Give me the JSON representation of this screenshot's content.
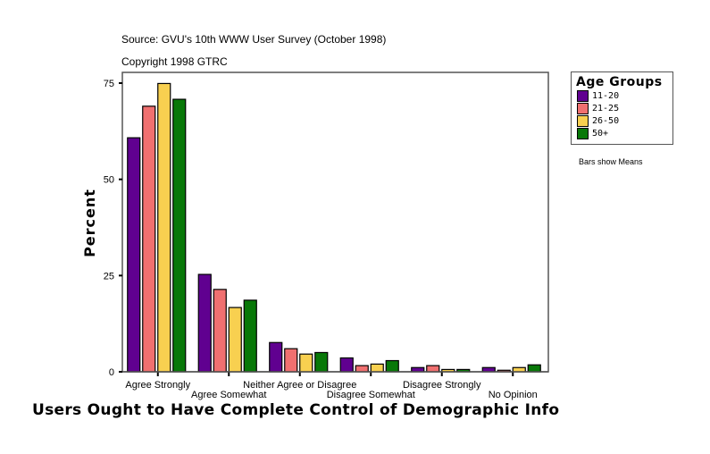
{
  "chart_data": {
    "type": "bar",
    "title": "Users Ought to Have Complete Control of Demographic Info",
    "source": "Source: GVU's 10th WWW User Survey (October 1998)",
    "copyright": "Copyright 1998 GTRC",
    "note": "Bars show Means",
    "xlabel": "",
    "ylabel": "Percent",
    "ylim": [
      0,
      78
    ],
    "yticks": [
      0,
      25,
      50,
      75
    ],
    "legend_title": "Age Groups",
    "legend_position": "right",
    "categories": [
      "Agree Strongly",
      "Agree Somewhat",
      "Neither Agree or Disagree",
      "Disagree Somewhat",
      "Disagree Strongly",
      "No Opinion"
    ],
    "series": [
      {
        "name": "11-20",
        "color": "#600090",
        "values": [
          60.8,
          25.3,
          7.6,
          3.6,
          1.1,
          1.1
        ]
      },
      {
        "name": "21-25",
        "color": "#f07070",
        "values": [
          69.0,
          21.4,
          6.0,
          1.6,
          1.6,
          0.4
        ]
      },
      {
        "name": "26-50",
        "color": "#f8d050",
        "values": [
          74.9,
          16.7,
          4.6,
          2.0,
          0.6,
          1.1
        ]
      },
      {
        "name": "50+",
        "color": "#087808",
        "values": [
          70.8,
          18.6,
          5.0,
          2.9,
          0.6,
          1.8
        ]
      }
    ]
  }
}
